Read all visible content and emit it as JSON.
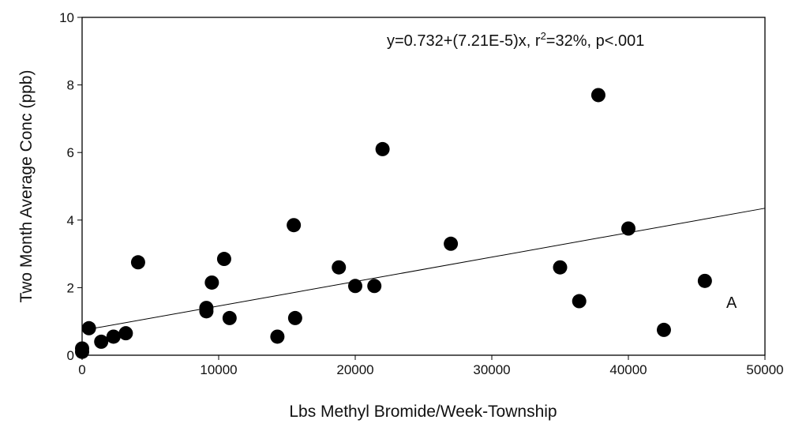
{
  "chart_data": {
    "type": "scatter",
    "xlabel": "Lbs Methyl Bromide/Week-Township",
    "ylabel": "Two Month Average Conc (ppb)",
    "annotation": [
      "y=0.732+(7.21E-5)x, r",
      "2",
      "=32%, p<.001"
    ],
    "panel_label": "A",
    "color": "#000000",
    "x": [
      0,
      0,
      500,
      1400,
      2300,
      3200,
      4100,
      9100,
      9100,
      9500,
      10400,
      10800,
      14300,
      15500,
      15600,
      18800,
      20000,
      21400,
      22000,
      27000,
      35000,
      36400,
      37800,
      40000,
      42600,
      45600
    ],
    "values": [
      0.1,
      0.2,
      0.8,
      0.4,
      0.55,
      0.65,
      2.75,
      1.3,
      1.4,
      2.15,
      2.85,
      1.1,
      0.55,
      3.85,
      1.1,
      2.6,
      2.05,
      2.05,
      6.1,
      3.3,
      2.6,
      1.6,
      7.7,
      3.75,
      0.75,
      2.2
    ],
    "trendline": {
      "x": [
        500,
        50000
      ],
      "y": [
        0.77,
        4.35
      ]
    },
    "xlim": [
      0,
      50000
    ],
    "xticks": [
      0,
      10000,
      20000,
      30000,
      40000,
      50000
    ],
    "ylim": [
      0,
      10
    ],
    "yticks": [
      0,
      2,
      4,
      6,
      8,
      10
    ],
    "grid": false
  }
}
